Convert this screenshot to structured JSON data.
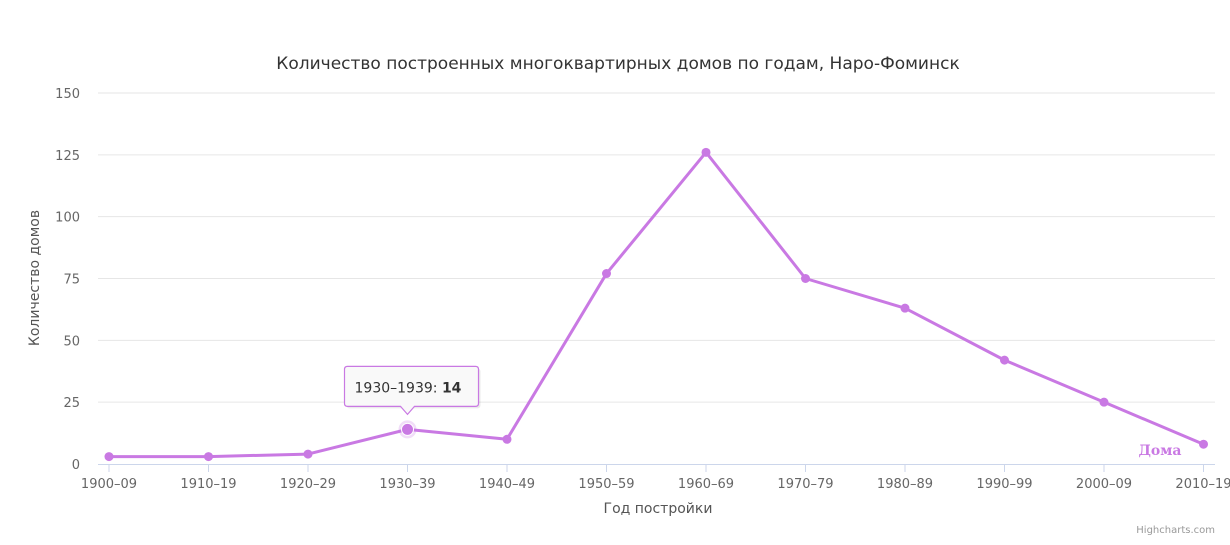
{
  "colors": {
    "series": "#c979e3",
    "grid": "#e6e6e6",
    "axis": "#ccd6eb",
    "tooltip_border": "#c979e3"
  },
  "chart_data": {
    "type": "line",
    "title": "Количество построенных многоквартирных домов по годам, Наро-Фоминск",
    "xlabel": "Год постройки",
    "ylabel": "Количество домов",
    "categories": [
      "1900–09",
      "1910–19",
      "1920–29",
      "1930–39",
      "1940–49",
      "1950–59",
      "1960–69",
      "1970–79",
      "1980–89",
      "1990–99",
      "2000–09",
      "2010–19"
    ],
    "series": [
      {
        "name": "Дома",
        "values": [
          3,
          3,
          4,
          14,
          10,
          77,
          126,
          75,
          63,
          42,
          25,
          8
        ]
      }
    ],
    "ylim": [
      0,
      150
    ],
    "yticks": [
      0,
      25,
      50,
      75,
      100,
      125,
      150
    ],
    "grid": true,
    "tooltip": {
      "category": "1930–1939",
      "value": "14",
      "index": 3
    },
    "credits": "Highcharts.com"
  }
}
